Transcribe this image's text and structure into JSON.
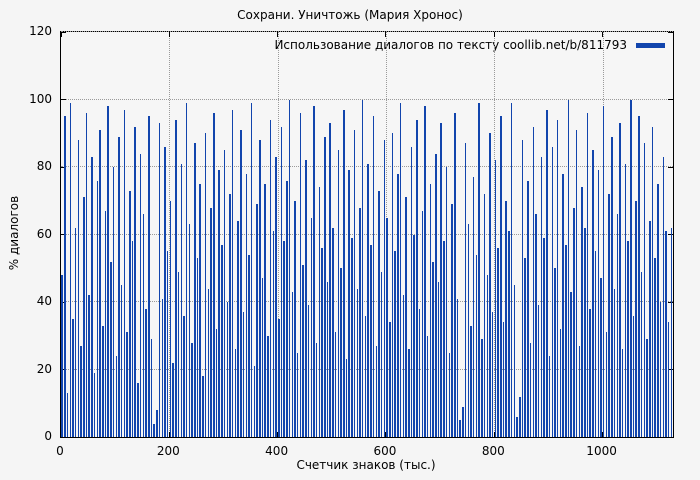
{
  "chart_data": {
    "type": "bar",
    "title": "Сохрани. Уничтожь (Мария Хронос)",
    "legend": "Использование диалогов по тексту coollib.net/b/811793",
    "xlabel": "Счетчик знаков (тыс.)",
    "ylabel": "% диалогов",
    "xlim": [
      0,
      1130
    ],
    "ylim": [
      0,
      120
    ],
    "xticks": [
      0,
      200,
      400,
      600,
      800,
      1000
    ],
    "yticks": [
      0,
      20,
      40,
      60,
      80,
      100,
      120
    ],
    "grid": true,
    "legend_position": "top-right",
    "series_color": "#1245ad",
    "x_start": 2,
    "x_step": 5,
    "values": [
      48,
      95,
      13,
      99,
      35,
      62,
      88,
      27,
      71,
      96,
      42,
      83,
      19,
      76,
      91,
      33,
      67,
      98,
      52,
      80,
      24,
      89,
      45,
      97,
      31,
      73,
      58,
      92,
      16,
      84,
      66,
      38,
      95,
      29,
      4,
      8,
      93,
      41,
      86,
      55,
      70,
      22,
      94,
      49,
      81,
      36,
      99,
      63,
      28,
      87,
      53,
      75,
      18,
      90,
      44,
      68,
      96,
      32,
      79,
      57,
      85,
      40,
      72,
      97,
      26,
      64,
      91,
      37,
      78,
      54,
      99,
      21,
      69,
      88,
      47,
      75,
      30,
      94,
      61,
      83,
      35,
      92,
      58,
      76,
      100,
      43,
      70,
      25,
      96,
      51,
      82,
      39,
      65,
      98,
      28,
      74,
      56,
      89,
      46,
      93,
      62,
      31,
      85,
      50,
      97,
      23,
      79,
      59,
      91,
      44,
      68,
      100,
      36,
      81,
      57,
      95,
      27,
      73,
      49,
      88,
      65,
      34,
      90,
      55,
      78,
      99,
      42,
      71,
      26,
      86,
      60,
      94,
      38,
      67,
      98,
      30,
      75,
      52,
      84,
      46,
      93,
      58,
      80,
      25,
      69,
      96,
      41,
      5,
      9,
      87,
      63,
      33,
      77,
      54,
      99,
      29,
      72,
      48,
      90,
      37,
      82,
      56,
      95,
      34,
      70,
      61,
      99,
      45,
      6,
      12,
      88,
      53,
      76,
      28,
      92,
      66,
      39,
      83,
      59,
      97,
      24,
      86,
      50,
      94,
      32,
      78,
      57,
      100,
      43,
      68,
      91,
      27,
      74,
      62,
      96,
      38,
      85,
      55,
      79,
      47,
      98,
      31,
      72,
      89,
      44,
      66,
      93,
      26,
      81,
      58,
      100,
      36,
      70,
      95,
      49,
      87,
      29,
      64,
      92,
      53,
      75,
      40,
      83,
      61,
      34,
      62
    ]
  }
}
